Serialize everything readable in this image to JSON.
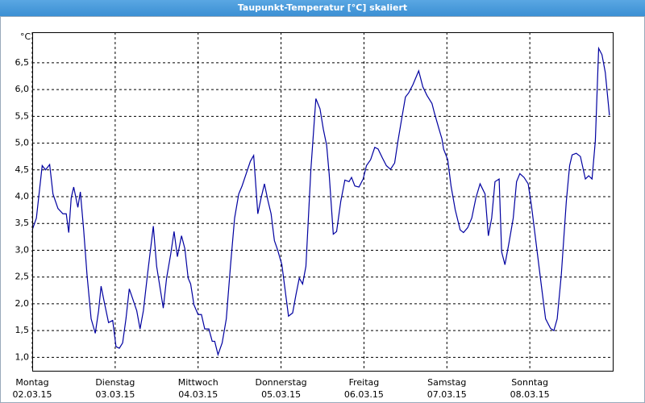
{
  "chart_data": {
    "type": "line",
    "title": "Taupunkt-Temperatur [°C] skaliert",
    "y_unit": "°C",
    "color": "#0000a0",
    "grid": true,
    "xlim": [
      0,
      7
    ],
    "ylim": [
      0.75,
      7.07
    ],
    "xticks": [
      {
        "value": 0,
        "label": "Montag",
        "date": "02.03.15"
      },
      {
        "value": 1,
        "label": "Dienstag",
        "date": "03.03.15"
      },
      {
        "value": 2,
        "label": "Mittwoch",
        "date": "04.03.15"
      },
      {
        "value": 3,
        "label": "Donnerstag",
        "date": "05.03.15"
      },
      {
        "value": 4,
        "label": "Freitag",
        "date": "06.03.15"
      },
      {
        "value": 5,
        "label": "Samstag",
        "date": "07.03.15"
      },
      {
        "value": 6,
        "label": "Sonntag",
        "date": "08.03.15"
      }
    ],
    "yticks": [
      {
        "value": 1.0,
        "label": "1,0"
      },
      {
        "value": 1.5,
        "label": "1,5"
      },
      {
        "value": 2.0,
        "label": "2,0"
      },
      {
        "value": 2.5,
        "label": "2,5"
      },
      {
        "value": 3.0,
        "label": "3,0"
      },
      {
        "value": 3.5,
        "label": "3,5"
      },
      {
        "value": 4.0,
        "label": "4,0"
      },
      {
        "value": 4.5,
        "label": "4,5"
      },
      {
        "value": 5.0,
        "label": "5,0"
      },
      {
        "value": 5.5,
        "label": "5,5"
      },
      {
        "value": 6.0,
        "label": "6,0"
      },
      {
        "value": 6.5,
        "label": "6,5"
      }
    ],
    "x": [
      0,
      0.05,
      0.12,
      0.16,
      0.21,
      0.25,
      0.31,
      0.37,
      0.41,
      0.44,
      0.47,
      0.5,
      0.55,
      0.58,
      0.62,
      0.66,
      0.71,
      0.76,
      0.8,
      0.83,
      0.87,
      0.92,
      0.97,
      1.01,
      1.05,
      1.09,
      1.13,
      1.17,
      1.21,
      1.26,
      1.3,
      1.34,
      1.39,
      1.46,
      1.5,
      1.58,
      1.62,
      1.67,
      1.71,
      1.75,
      1.8,
      1.84,
      1.88,
      1.91,
      1.95,
      2.0,
      2.04,
      2.08,
      2.13,
      2.17,
      2.2,
      2.24,
      2.29,
      2.34,
      2.39,
      2.44,
      2.49,
      2.53,
      2.58,
      2.63,
      2.67,
      2.72,
      2.76,
      2.8,
      2.84,
      2.88,
      2.92,
      2.96,
      3.01,
      3.06,
      3.09,
      3.14,
      3.18,
      3.22,
      3.26,
      3.3,
      3.36,
      3.42,
      3.47,
      3.51,
      3.55,
      3.58,
      3.63,
      3.67,
      3.72,
      3.77,
      3.82,
      3.85,
      3.89,
      3.94,
      3.99,
      4.03,
      4.08,
      4.13,
      4.17,
      4.22,
      4.27,
      4.32,
      4.37,
      4.41,
      4.45,
      4.5,
      4.54,
      4.59,
      4.66,
      4.71,
      4.76,
      4.82,
      4.85,
      4.9,
      4.94,
      4.96,
      5.01,
      5.05,
      5.1,
      5.16,
      5.2,
      5.25,
      5.3,
      5.35,
      5.4,
      5.46,
      5.5,
      5.54,
      5.58,
      5.63,
      5.66,
      5.7,
      5.75,
      5.8,
      5.84,
      5.88,
      5.93,
      5.98,
      6.02,
      6.08,
      6.14,
      6.19,
      6.25,
      6.29,
      6.33,
      6.38,
      6.44,
      6.48,
      6.51,
      6.56,
      6.61,
      6.67,
      6.71,
      6.75,
      6.79,
      6.83,
      6.87,
      6.91,
      6.96
    ],
    "values": [
      3.38,
      3.6,
      4.58,
      4.5,
      4.6,
      4.05,
      3.78,
      3.68,
      3.68,
      3.33,
      3.98,
      4.18,
      3.8,
      4.09,
      3.38,
      2.55,
      1.72,
      1.45,
      1.87,
      2.33,
      2.02,
      1.65,
      1.69,
      1.2,
      1.17,
      1.27,
      1.72,
      2.28,
      2.1,
      1.87,
      1.53,
      1.87,
      2.55,
      3.45,
      2.7,
      1.92,
      2.48,
      2.93,
      3.35,
      2.88,
      3.27,
      3.03,
      2.48,
      2.37,
      1.98,
      1.8,
      1.8,
      1.53,
      1.53,
      1.3,
      1.3,
      1.05,
      1.27,
      1.72,
      2.7,
      3.6,
      4.05,
      4.2,
      4.43,
      4.66,
      4.77,
      3.68,
      3.98,
      4.24,
      3.94,
      3.68,
      3.18,
      3.0,
      2.73,
      2.13,
      1.77,
      1.83,
      2.17,
      2.48,
      2.37,
      2.7,
      4.51,
      5.83,
      5.64,
      5.26,
      4.96,
      4.43,
      3.3,
      3.35,
      3.91,
      4.31,
      4.28,
      4.36,
      4.2,
      4.18,
      4.33,
      4.58,
      4.69,
      4.92,
      4.89,
      4.73,
      4.58,
      4.51,
      4.63,
      5.04,
      5.41,
      5.86,
      5.94,
      6.09,
      6.35,
      6.05,
      5.89,
      5.74,
      5.56,
      5.29,
      5.08,
      4.89,
      4.69,
      4.2,
      3.76,
      3.38,
      3.33,
      3.42,
      3.6,
      3.98,
      4.24,
      4.05,
      3.27,
      3.6,
      4.28,
      4.33,
      2.97,
      2.73,
      3.15,
      3.6,
      4.28,
      4.43,
      4.36,
      4.24,
      3.83,
      3.08,
      2.33,
      1.72,
      1.54,
      1.5,
      1.72,
      2.55,
      3.91,
      4.58,
      4.78,
      4.81,
      4.75,
      4.33,
      4.39,
      4.33,
      5.04,
      6.77,
      6.65,
      6.32,
      5.52
    ]
  }
}
